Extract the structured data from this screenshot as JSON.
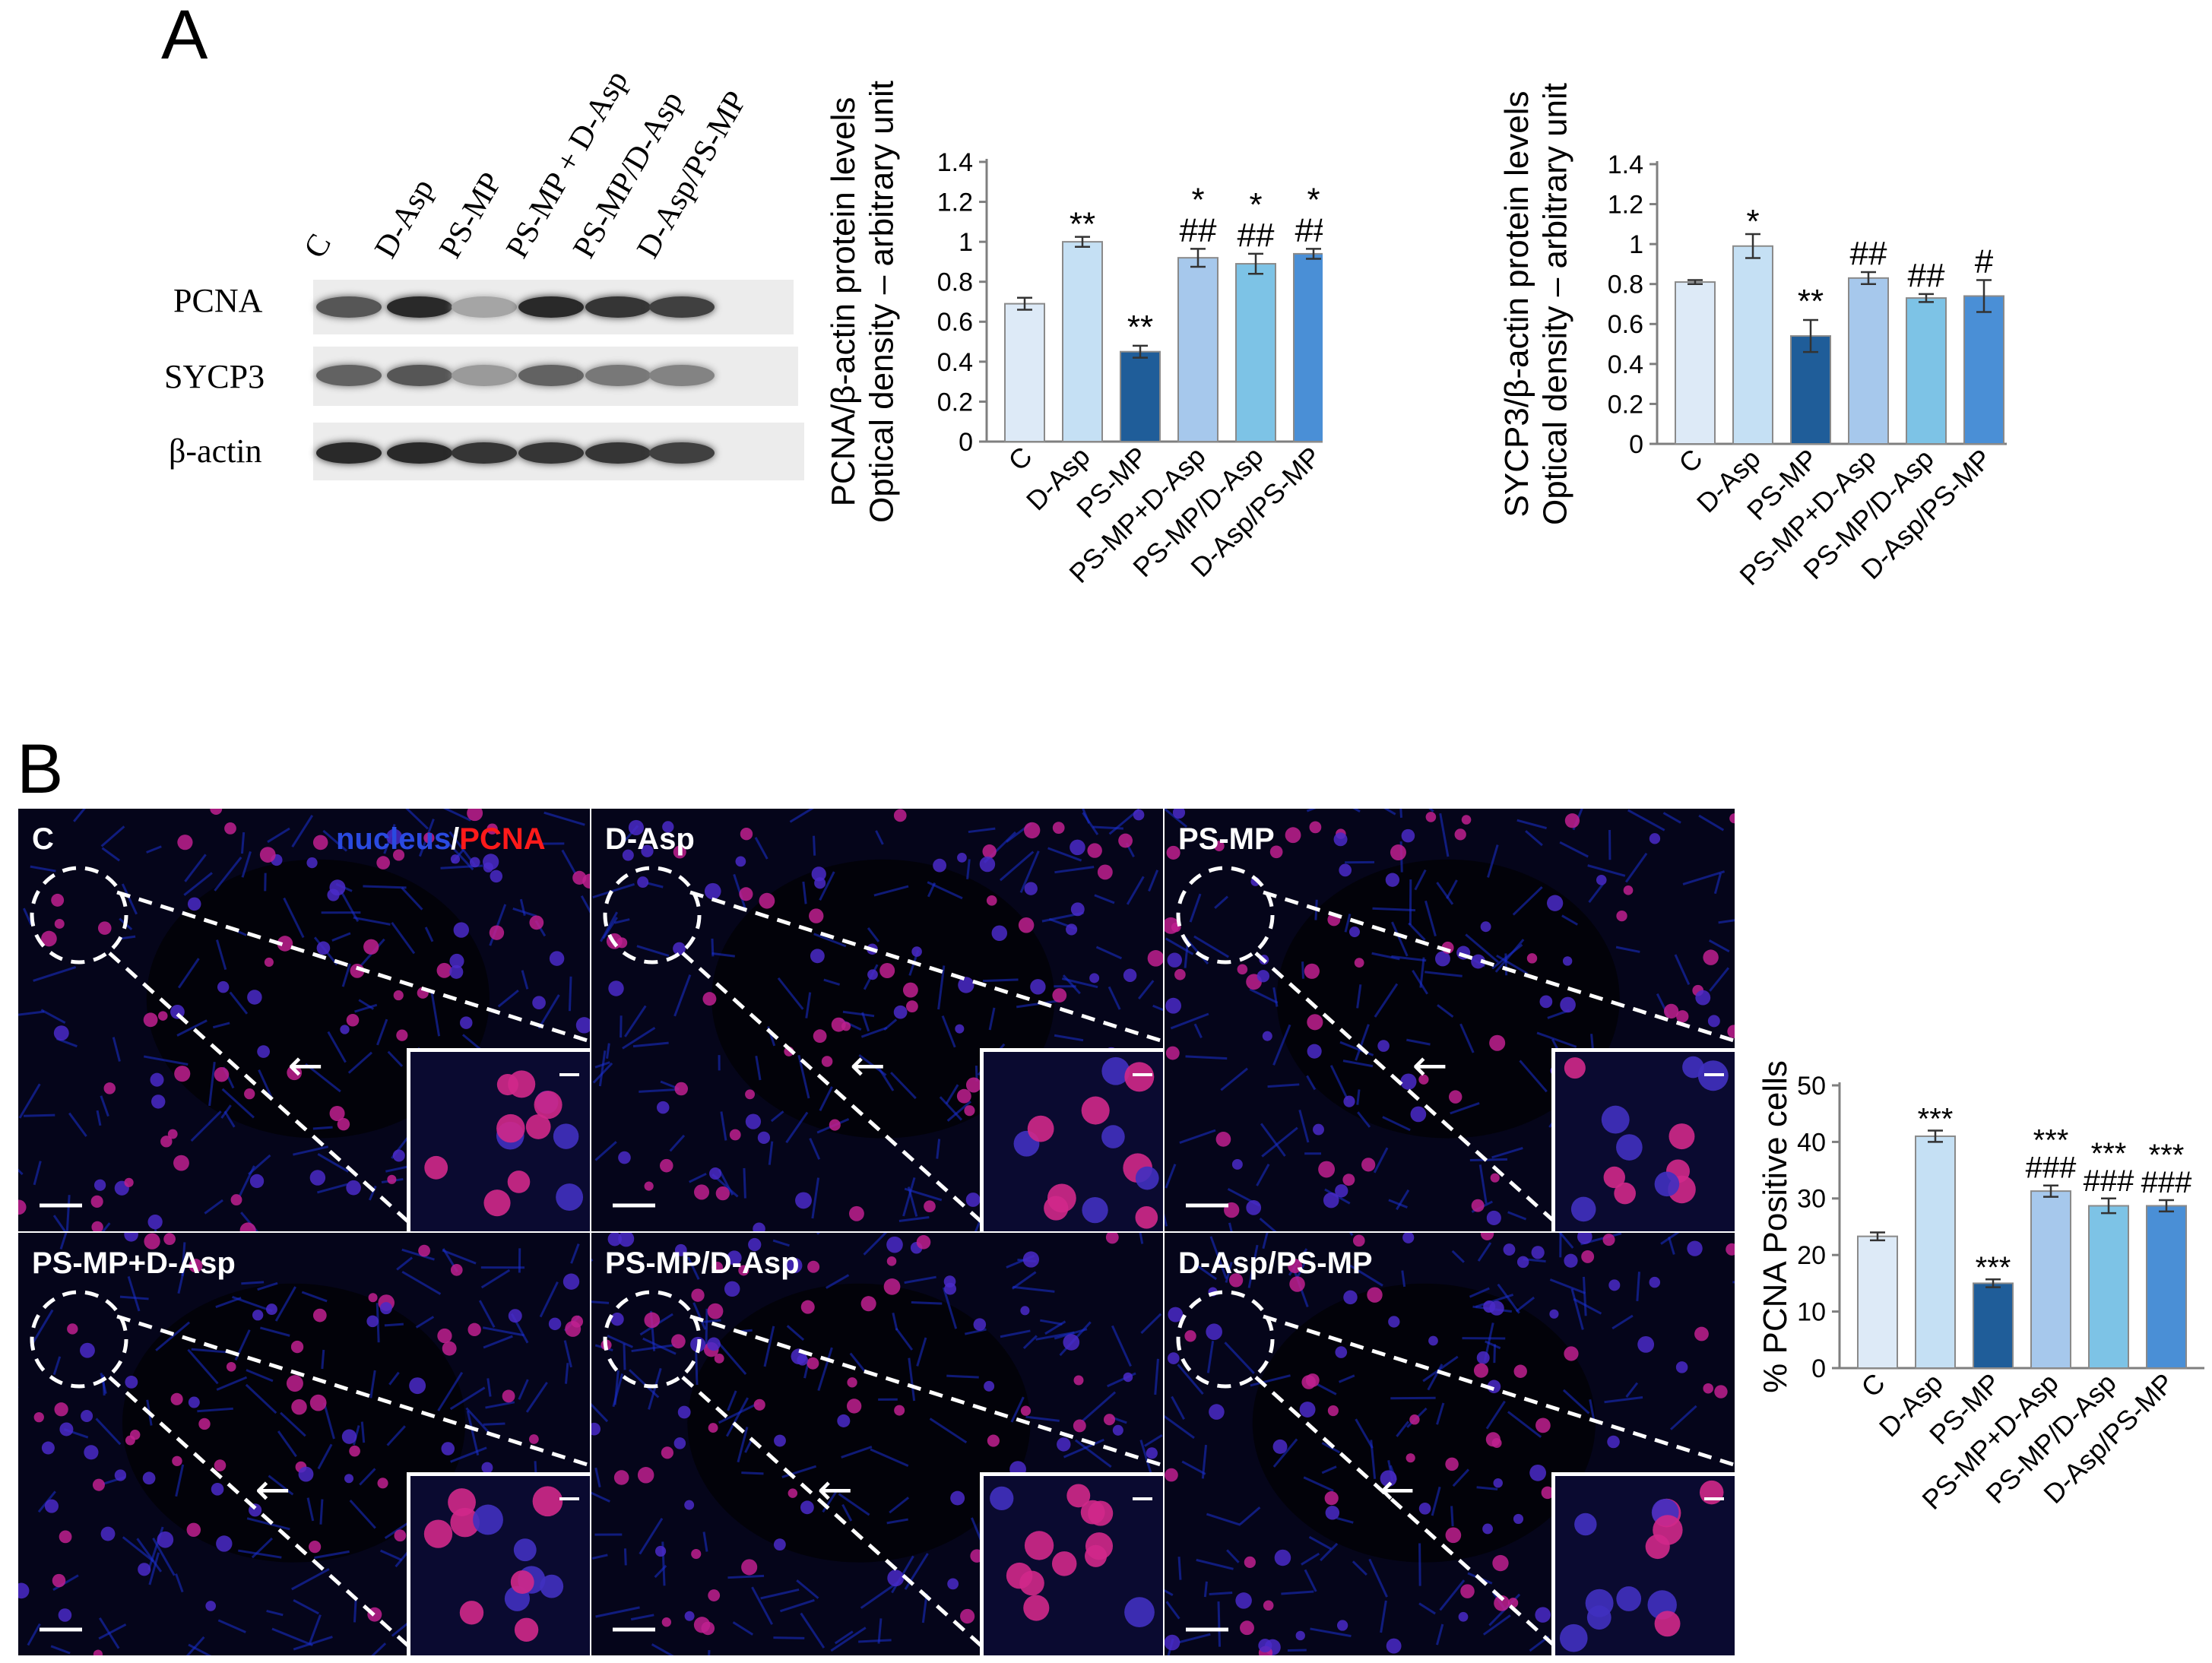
{
  "panel_a_label": "A",
  "panel_b_label": "B",
  "blot": {
    "lanes": [
      "C",
      "D-Asp",
      "PS-MP",
      "PS-MP + D-Asp",
      "PS-MP/D-Asp",
      "D-Asp/PS-MP"
    ],
    "rows": [
      "PCNA",
      "SYCP3",
      "β-actin"
    ],
    "intensities": {
      "PCNA": [
        0.75,
        0.95,
        0.4,
        0.95,
        0.9,
        0.85
      ],
      "SYCP3": [
        0.7,
        0.75,
        0.45,
        0.7,
        0.6,
        0.55
      ],
      "β-actin": [
        0.95,
        0.95,
        0.9,
        0.9,
        0.9,
        0.85
      ]
    }
  },
  "chart_data": [
    {
      "type": "bar",
      "ylabel_line1": "PCNA/β-actin protein levels",
      "ylabel_line2": "Optical density – arbitrary unit",
      "categories": [
        "C",
        "D-Asp",
        "PS-MP",
        "PS-MP+D-Asp",
        "PS-MP/D-Asp",
        "D-Asp/PS-MP"
      ],
      "values": [
        0.69,
        1.0,
        0.45,
        0.92,
        0.89,
        0.94
      ],
      "errors": [
        0.03,
        0.025,
        0.03,
        0.045,
        0.05,
        0.025
      ],
      "annotations_top": [
        "",
        "**",
        "",
        "*",
        "*",
        "*"
      ],
      "annotations_bottom": [
        "",
        "",
        "**",
        "##",
        "##",
        "##"
      ],
      "ylim": [
        0,
        1.4
      ],
      "yticks": [
        "0",
        "0.2",
        "0.4",
        "0.6",
        "0.8",
        "1",
        "1.2",
        "1.4"
      ],
      "colors": [
        "#ddeaf7",
        "#c5e0f4",
        "#1f5d99",
        "#a6c8ec",
        "#7dc3e6",
        "#4a8fd6"
      ]
    },
    {
      "type": "bar",
      "ylabel_line1": "SYCP3/β-actin protein levels",
      "ylabel_line2": "Optical density – arbitrary unit",
      "categories": [
        "C",
        "D-Asp",
        "PS-MP",
        "PS-MP+D-Asp",
        "PS-MP/D-Asp",
        "D-Asp/PS-MP"
      ],
      "values": [
        0.81,
        0.99,
        0.54,
        0.83,
        0.73,
        0.74
      ],
      "errors": [
        0.01,
        0.06,
        0.08,
        0.03,
        0.02,
        0.08
      ],
      "annotations_top": [
        "",
        "*",
        "",
        "",
        "",
        ""
      ],
      "annotations_bottom": [
        "",
        "",
        "**",
        "##",
        "##",
        "#"
      ],
      "ylim": [
        0,
        1.4
      ],
      "yticks": [
        "0",
        "0.2",
        "0.4",
        "0.6",
        "0.8",
        "1",
        "1.2",
        "1.4"
      ],
      "colors": [
        "#ddeaf7",
        "#c5e0f4",
        "#1f5d99",
        "#a6c8ec",
        "#7dc3e6",
        "#4a8fd6"
      ]
    },
    {
      "type": "bar",
      "ylabel_line1": "% PCNA Positive cells",
      "ylabel_line2": "",
      "categories": [
        "C",
        "D-Asp",
        "PS-MP",
        "PS-MP+D-Asp",
        "PS-MP/D-Asp",
        "D-Asp/PS-MP"
      ],
      "values": [
        23.3,
        41.0,
        15.0,
        31.3,
        28.7,
        28.7
      ],
      "errors": [
        0.7,
        1.0,
        0.7,
        1.0,
        1.3,
        1.0
      ],
      "annotations_top": [
        "",
        "***",
        "***",
        "***",
        "***",
        "***"
      ],
      "annotations_bottom": [
        "",
        "",
        "",
        "###",
        "###",
        "###"
      ],
      "ylim": [
        0,
        50
      ],
      "yticks": [
        "0",
        "10",
        "20",
        "30",
        "40",
        "50"
      ],
      "colors": [
        "#ddeaf7",
        "#c5e0f4",
        "#1f5d99",
        "#a6c8ec",
        "#7dc3e6",
        "#4a8fd6"
      ]
    }
  ],
  "micrographs": {
    "stain_nucleus": "nucleus",
    "stain_sep": "/",
    "stain_pcna": "PCNA",
    "panels": [
      "C",
      "D-Asp",
      "PS-MP",
      "PS-MP+D-Asp",
      "PS-MP/D-Asp",
      "D-Asp/PS-MP"
    ]
  }
}
